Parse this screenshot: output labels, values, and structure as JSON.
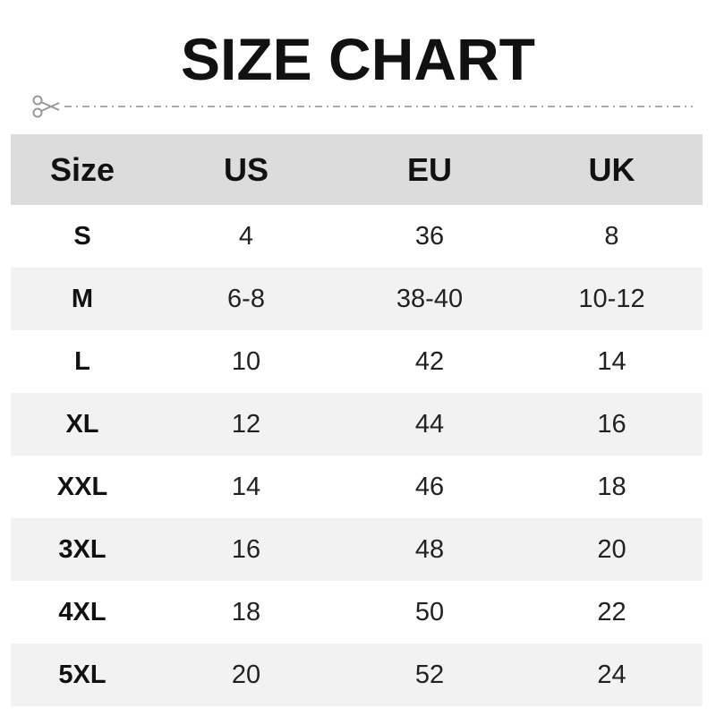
{
  "title": "SIZE CHART",
  "cut_icon": "scissors-icon",
  "colors": {
    "header_bg": "#dcdcdc",
    "alt_row_bg": "#f2f2f2",
    "dash": "#aaaaaa"
  },
  "chart_data": {
    "type": "table",
    "columns": [
      "Size",
      "US",
      "EU",
      "UK"
    ],
    "rows": [
      [
        "S",
        "4",
        "36",
        "8"
      ],
      [
        "M",
        "6-8",
        "38-40",
        "10-12"
      ],
      [
        "L",
        "10",
        "42",
        "14"
      ],
      [
        "XL",
        "12",
        "44",
        "16"
      ],
      [
        "XXL",
        "14",
        "46",
        "18"
      ],
      [
        "3XL",
        "16",
        "48",
        "20"
      ],
      [
        "4XL",
        "18",
        "50",
        "22"
      ],
      [
        "5XL",
        "20",
        "52",
        "24"
      ]
    ]
  }
}
